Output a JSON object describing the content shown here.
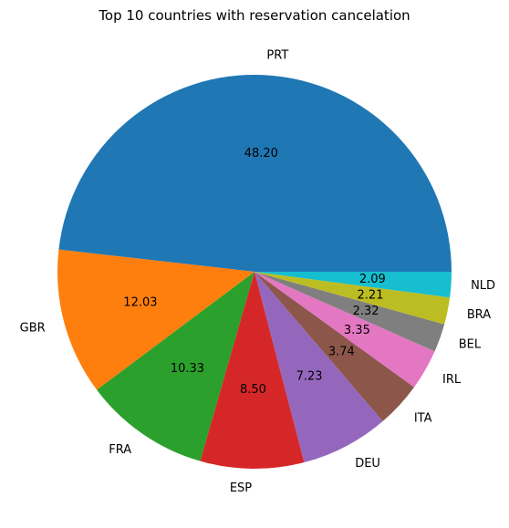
{
  "chart_data": {
    "type": "pie",
    "title": "Top 10 countries with reservation cancelation",
    "start_angle_deg": 0,
    "direction": "counterclockwise",
    "slices": [
      {
        "label": "PRT",
        "value": 48.2,
        "value_label": "48.20",
        "color": "#1f77b4"
      },
      {
        "label": "GBR",
        "value": 12.03,
        "value_label": "12.03",
        "color": "#ff7f0e"
      },
      {
        "label": "FRA",
        "value": 10.33,
        "value_label": "10.33",
        "color": "#2ca02c"
      },
      {
        "label": "ESP",
        "value": 8.5,
        "value_label": "8.50",
        "color": "#d62728"
      },
      {
        "label": "DEU",
        "value": 7.23,
        "value_label": "7.23",
        "color": "#9467bd"
      },
      {
        "label": "ITA",
        "value": 3.74,
        "value_label": "3.74",
        "color": "#8c564b"
      },
      {
        "label": "IRL",
        "value": 3.35,
        "value_label": "3.35",
        "color": "#e377c2"
      },
      {
        "label": "BEL",
        "value": 2.32,
        "value_label": "2.32",
        "color": "#7f7f7f"
      },
      {
        "label": "BRA",
        "value": 2.21,
        "value_label": "2.21",
        "color": "#bcbd22"
      },
      {
        "label": "NLD",
        "value": 2.09,
        "value_label": "2.09",
        "color": "#17becf"
      }
    ]
  }
}
